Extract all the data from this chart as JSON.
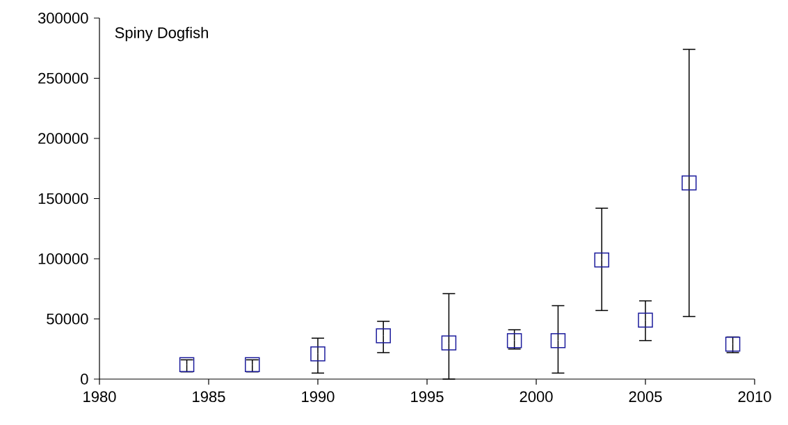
{
  "chart_data": {
    "type": "scatter",
    "title": "Spiny Dogfish",
    "x": [
      1984,
      1987,
      1990,
      1993,
      1996,
      1999,
      2001,
      2003,
      2005,
      2007,
      2009
    ],
    "values": [
      12000,
      12000,
      21000,
      36000,
      30000,
      32000,
      32000,
      99000,
      49000,
      163000,
      29000
    ],
    "errors": [
      [
        6000,
        16000
      ],
      [
        6000,
        16000
      ],
      [
        5000,
        34000
      ],
      [
        22000,
        48000
      ],
      [
        0,
        71000
      ],
      [
        25000,
        41000
      ],
      [
        5000,
        61000
      ],
      [
        57000,
        142000
      ],
      [
        32000,
        65000
      ],
      [
        52000,
        274000
      ],
      [
        22000,
        35000
      ]
    ],
    "color": "#1c1c9c",
    "marker": "square",
    "xlim": [
      1980,
      2010
    ],
    "xticks": [
      1980,
      1985,
      1990,
      1995,
      2000,
      2005,
      2010
    ],
    "ylim": [
      0,
      300000
    ],
    "yticks": [
      0,
      50000,
      100000,
      150000,
      200000,
      250000,
      300000
    ],
    "grid": false
  }
}
